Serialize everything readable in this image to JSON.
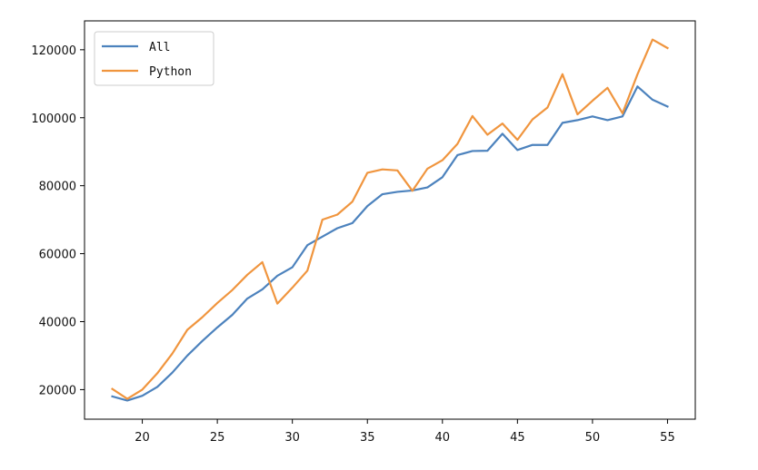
{
  "chart_data": {
    "type": "line",
    "x": [
      18,
      19,
      20,
      21,
      22,
      23,
      24,
      25,
      26,
      27,
      28,
      29,
      30,
      31,
      32,
      33,
      34,
      35,
      36,
      37,
      38,
      39,
      40,
      41,
      42,
      43,
      44,
      45,
      46,
      47,
      48,
      49,
      50,
      51,
      52,
      53,
      54,
      55
    ],
    "series": [
      {
        "name": "All",
        "color": "#4c82bd",
        "values": [
          18000,
          16800,
          18200,
          20800,
          25000,
          30000,
          34300,
          38300,
          42000,
          46800,
          49500,
          53500,
          56000,
          62500,
          65000,
          67500,
          69000,
          74000,
          77500,
          78200,
          78600,
          79500,
          82500,
          89000,
          90200,
          90300,
          95300,
          90500,
          92000,
          92000,
          98500,
          99300,
          100400,
          99300,
          100400,
          109200,
          105300,
          103300
        ]
      },
      {
        "name": "Python",
        "color": "#f0953e",
        "values": [
          20200,
          17300,
          20000,
          24800,
          30600,
          37600,
          41300,
          45500,
          49300,
          53800,
          57500,
          45300,
          50000,
          55000,
          70000,
          71500,
          75300,
          83800,
          84800,
          84500,
          78500,
          85000,
          87500,
          92300,
          100500,
          95000,
          98300,
          93500,
          99500,
          103000,
          112800,
          101000,
          105000,
          108800,
          101300,
          112800,
          123000,
          120500
        ]
      }
    ],
    "xticks": [
      "20",
      "25",
      "30",
      "35",
      "40",
      "45",
      "50",
      "55"
    ],
    "yticks": [
      "20000",
      "40000",
      "60000",
      "80000",
      "100000",
      "120000"
    ],
    "xlim": [
      16.15,
      56.85
    ],
    "ylim": [
      11300,
      128500
    ],
    "title": "",
    "xlabel": "",
    "ylabel": "",
    "legend_position": "top-left",
    "grid": false
  }
}
